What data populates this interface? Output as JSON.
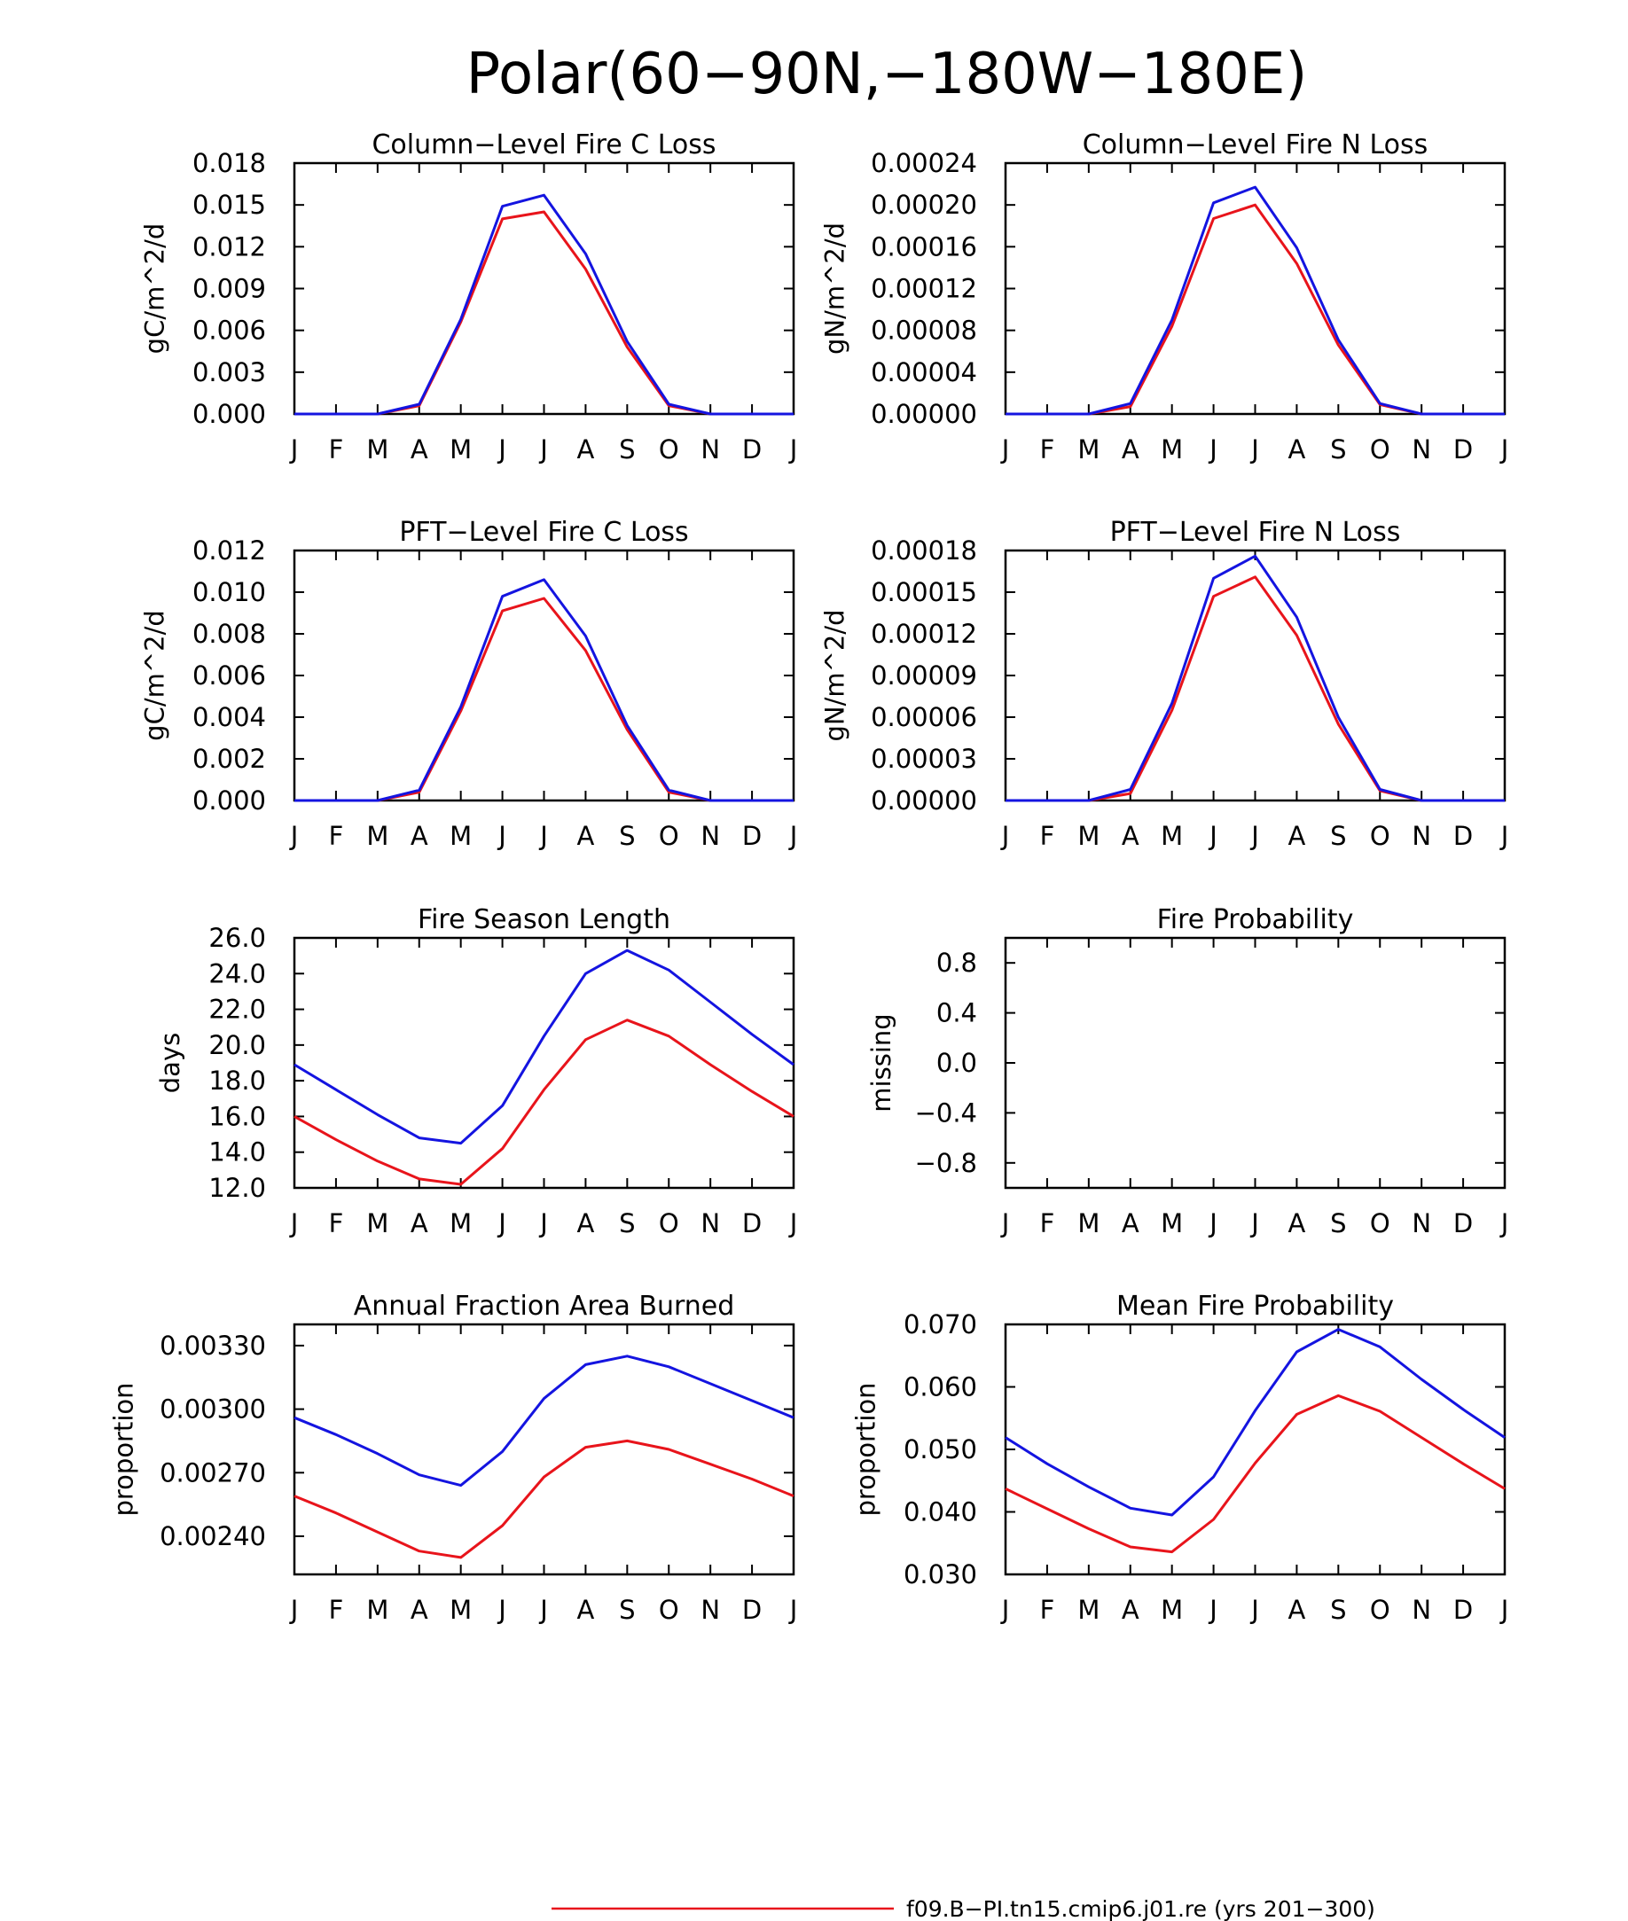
{
  "title": "Polar(60−90N,−180W−180E)",
  "legend": {
    "entries": [
      {
        "label": "f09.B−PI.tn15.cmip6.j01.re (yrs 201−300)",
        "color": "#e8141b"
      }
    ]
  },
  "colors": {
    "case1": "#e8141b",
    "case2": "#1414e0",
    "axis": "#000000"
  },
  "chart_data": [
    {
      "type": "line",
      "title": "Column−Level Fire C Loss",
      "ylabel": "gC/m^2/d",
      "categories": [
        "J",
        "F",
        "M",
        "A",
        "M",
        "J",
        "J",
        "A",
        "S",
        "O",
        "N",
        "D",
        "J"
      ],
      "ylim": [
        0,
        0.018
      ],
      "yticks": [
        0,
        0.003,
        0.006,
        0.009,
        0.012,
        0.015,
        0.018
      ],
      "ytick_labels": [
        "0.000",
        "0.003",
        "0.006",
        "0.009",
        "0.012",
        "0.015",
        "0.018"
      ],
      "series": [
        {
          "color": "#e8141b",
          "values": [
            0.0,
            0.0,
            0.0,
            0.0006,
            0.0066,
            0.014,
            0.0145,
            0.0104,
            0.0048,
            0.0006,
            0.0,
            0.0,
            0.0
          ]
        },
        {
          "color": "#1414e0",
          "values": [
            0.0,
            0.0,
            0.0,
            0.0007,
            0.0068,
            0.0149,
            0.0157,
            0.0115,
            0.0052,
            0.0007,
            0.0,
            0.0,
            0.0
          ]
        }
      ]
    },
    {
      "type": "line",
      "title": "Column−Level Fire N Loss",
      "ylabel": "gN/m^2/d",
      "categories": [
        "J",
        "F",
        "M",
        "A",
        "M",
        "J",
        "J",
        "A",
        "S",
        "O",
        "N",
        "D",
        "J"
      ],
      "ylim": [
        0,
        0.00024
      ],
      "yticks": [
        0,
        4e-05,
        8e-05,
        0.00012,
        0.00016,
        0.0002,
        0.00024
      ],
      "ytick_labels": [
        "0.00000",
        "0.00004",
        "0.00008",
        "0.00012",
        "0.00016",
        "0.00020",
        "0.00024"
      ],
      "series": [
        {
          "color": "#e8141b",
          "values": [
            0.0,
            0.0,
            0.0,
            7e-06,
            8.4e-05,
            0.000187,
            0.0002,
            0.000144,
            6.6e-05,
            9e-06,
            0.0,
            0.0,
            0.0
          ]
        },
        {
          "color": "#1414e0",
          "values": [
            0.0,
            0.0,
            0.0,
            1e-05,
            9e-05,
            0.000202,
            0.000217,
            0.000159,
            7.1e-05,
            1e-05,
            0.0,
            0.0,
            0.0
          ]
        }
      ]
    },
    {
      "type": "line",
      "title": "PFT−Level Fire C Loss",
      "ylabel": "gC/m^2/d",
      "categories": [
        "J",
        "F",
        "M",
        "A",
        "M",
        "J",
        "J",
        "A",
        "S",
        "O",
        "N",
        "D",
        "J"
      ],
      "ylim": [
        0,
        0.012
      ],
      "yticks": [
        0,
        0.002,
        0.004,
        0.006,
        0.008,
        0.01,
        0.012
      ],
      "ytick_labels": [
        "0.000",
        "0.002",
        "0.004",
        "0.006",
        "0.008",
        "0.010",
        "0.012"
      ],
      "series": [
        {
          "color": "#e8141b",
          "values": [
            0.0,
            0.0,
            0.0,
            0.0004,
            0.0043,
            0.0091,
            0.0097,
            0.0072,
            0.0034,
            0.0004,
            0.0,
            0.0,
            0.0
          ]
        },
        {
          "color": "#1414e0",
          "values": [
            0.0,
            0.0,
            0.0,
            0.0005,
            0.0045,
            0.0098,
            0.0106,
            0.0079,
            0.0036,
            0.0005,
            0.0,
            0.0,
            0.0
          ]
        }
      ]
    },
    {
      "type": "line",
      "title": "PFT−Level Fire N Loss",
      "ylabel": "gN/m^2/d",
      "categories": [
        "J",
        "F",
        "M",
        "A",
        "M",
        "J",
        "J",
        "A",
        "S",
        "O",
        "N",
        "D",
        "J"
      ],
      "ylim": [
        0,
        0.00018
      ],
      "yticks": [
        0,
        3e-05,
        6e-05,
        9e-05,
        0.00012,
        0.00015,
        0.00018
      ],
      "ytick_labels": [
        "0.00000",
        "0.00003",
        "0.00006",
        "0.00009",
        "0.00012",
        "0.00015",
        "0.00018"
      ],
      "series": [
        {
          "color": "#e8141b",
          "values": [
            0.0,
            0.0,
            0.0,
            5e-06,
            6.5e-05,
            0.000147,
            0.000161,
            0.000119,
            5.5e-05,
            7e-06,
            0.0,
            0.0,
            0.0
          ]
        },
        {
          "color": "#1414e0",
          "values": [
            0.0,
            0.0,
            0.0,
            8e-06,
            7e-05,
            0.00016,
            0.000176,
            0.000132,
            6e-05,
            8e-06,
            0.0,
            0.0,
            0.0
          ]
        }
      ]
    },
    {
      "type": "line",
      "title": "Fire Season Length",
      "ylabel": "days",
      "categories": [
        "J",
        "F",
        "M",
        "A",
        "M",
        "J",
        "J",
        "A",
        "S",
        "O",
        "N",
        "D",
        "J"
      ],
      "ylim": [
        12,
        26
      ],
      "yticks": [
        12,
        14,
        16,
        18,
        20,
        22,
        24,
        26
      ],
      "ytick_labels": [
        "12.0",
        "14.0",
        "16.0",
        "18.0",
        "20.0",
        "22.0",
        "24.0",
        "26.0"
      ],
      "series": [
        {
          "color": "#e8141b",
          "values": [
            16.0,
            14.7,
            13.5,
            12.5,
            12.2,
            14.2,
            17.5,
            20.3,
            21.4,
            20.5,
            18.9,
            17.4,
            16.0
          ]
        },
        {
          "color": "#1414e0",
          "values": [
            18.9,
            17.5,
            16.1,
            14.8,
            14.5,
            16.6,
            20.5,
            24.0,
            25.3,
            24.2,
            22.4,
            20.6,
            18.9
          ]
        }
      ]
    },
    {
      "type": "line",
      "title": "Fire Probability",
      "ylabel": "missing",
      "categories": [
        "J",
        "F",
        "M",
        "A",
        "M",
        "J",
        "J",
        "A",
        "S",
        "O",
        "N",
        "D",
        "J"
      ],
      "ylim": [
        -1,
        1
      ],
      "yticks": [
        -0.8,
        -0.4,
        0.0,
        0.4,
        0.8
      ],
      "ytick_labels": [
        "−0.8",
        "−0.4",
        "0.0",
        "0.4",
        "0.8"
      ],
      "series": []
    },
    {
      "type": "line",
      "title": "Annual Fraction Area Burned",
      "ylabel": "proportion",
      "categories": [
        "J",
        "F",
        "M",
        "A",
        "M",
        "J",
        "J",
        "A",
        "S",
        "O",
        "N",
        "D",
        "J"
      ],
      "ylim": [
        0.00222,
        0.0034
      ],
      "yticks": [
        0.0024,
        0.0027,
        0.003,
        0.0033
      ],
      "ytick_labels": [
        "0.00240",
        "0.00270",
        "0.00300",
        "0.00330"
      ],
      "series": [
        {
          "color": "#e8141b",
          "values": [
            0.00259,
            0.00251,
            0.00242,
            0.00233,
            0.0023,
            0.00245,
            0.00268,
            0.00282,
            0.00285,
            0.00281,
            0.00274,
            0.00267,
            0.00259
          ]
        },
        {
          "color": "#1414e0",
          "values": [
            0.00296,
            0.00288,
            0.00279,
            0.00269,
            0.00264,
            0.0028,
            0.00305,
            0.00321,
            0.00325,
            0.0032,
            0.00312,
            0.00304,
            0.00296
          ]
        }
      ]
    },
    {
      "type": "line",
      "title": "Mean Fire Probability",
      "ylabel": "proportion",
      "categories": [
        "J",
        "F",
        "M",
        "A",
        "M",
        "J",
        "J",
        "A",
        "S",
        "O",
        "N",
        "D",
        "J"
      ],
      "ylim": [
        0.03,
        0.07
      ],
      "yticks": [
        0.03,
        0.04,
        0.05,
        0.06,
        0.07
      ],
      "ytick_labels": [
        "0.030",
        "0.040",
        "0.050",
        "0.060",
        "0.070"
      ],
      "series": [
        {
          "color": "#e8141b",
          "values": [
            0.0437,
            0.0405,
            0.0373,
            0.0344,
            0.0336,
            0.0388,
            0.0478,
            0.0556,
            0.0586,
            0.0561,
            0.0519,
            0.0477,
            0.0437
          ]
        },
        {
          "color": "#1414e0",
          "values": [
            0.0519,
            0.0477,
            0.044,
            0.0406,
            0.0395,
            0.0456,
            0.0562,
            0.0656,
            0.0692,
            0.0664,
            0.0612,
            0.0564,
            0.0519
          ]
        }
      ]
    }
  ]
}
